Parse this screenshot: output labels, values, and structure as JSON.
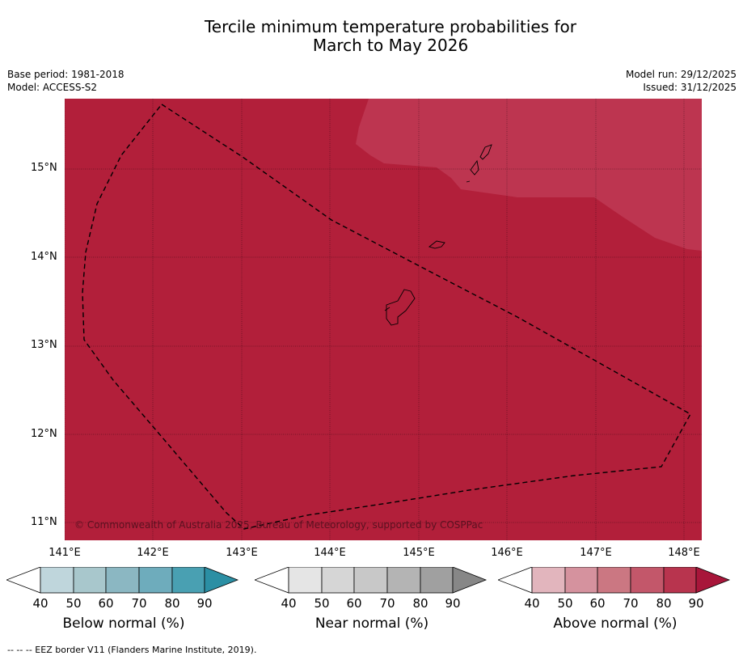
{
  "title": {
    "line1": "Tercile minimum temperature probabilities for",
    "line2": "March to May 2026"
  },
  "meta_left": {
    "base_period": "Base period: 1981-2018",
    "model": "Model: ACCESS-S2"
  },
  "meta_right": {
    "model_run": "Model run: 29/12/2025",
    "issued": "Issued: 31/12/2025"
  },
  "map": {
    "copyright": "© Commonwealth of Australia 2025, Bureau of Meteorology, supported by COSPPac",
    "lat_labels": [
      "15°N",
      "14°N",
      "13°N",
      "12°N",
      "11°N"
    ],
    "lon_labels": [
      "141°E",
      "142°E",
      "143°E",
      "144°E",
      "145°E",
      "146°E",
      "147°E",
      "148°E"
    ],
    "fill_main": "#b21f3a",
    "fill_light": "#bd3550"
  },
  "legends": [
    {
      "title": "Below normal (%)",
      "ticks": [
        "40",
        "50",
        "60",
        "70",
        "80",
        "90"
      ],
      "colors": [
        "#ffffff",
        "#bfd6dc",
        "#a8c7cc",
        "#8bb7c2",
        "#6eacbc",
        "#49a0b2",
        "#2b8fa4"
      ]
    },
    {
      "title": "Near normal (%)",
      "ticks": [
        "40",
        "50",
        "60",
        "70",
        "80",
        "90"
      ],
      "colors": [
        "#ffffff",
        "#e5e5e5",
        "#d6d6d6",
        "#c8c8c8",
        "#b4b4b4",
        "#a0a0a0",
        "#878787"
      ]
    },
    {
      "title": "Above normal (%)",
      "ticks": [
        "40",
        "50",
        "60",
        "70",
        "80",
        "90"
      ],
      "colors": [
        "#ffffff",
        "#e2b5bd",
        "#d5929e",
        "#cb7782",
        "#c3576a",
        "#b8344e",
        "#a8163a"
      ]
    }
  ],
  "footnote": "--  --  -- EEZ border V11 (Flanders Marine Institute, 2019)."
}
